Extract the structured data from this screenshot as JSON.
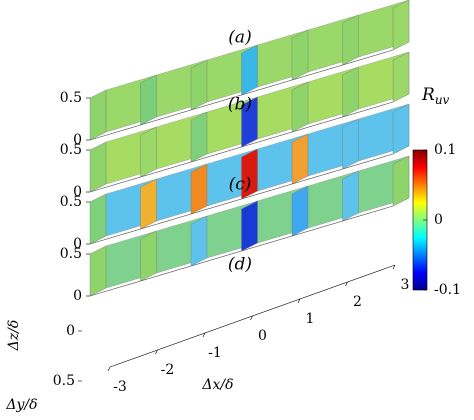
{
  "chart_data": {
    "type": "slices",
    "panels": [
      "(a)",
      "(b)",
      "(c)",
      "(d)"
    ],
    "xlabel": "Δx/δ",
    "ylabel": "Δy/δ",
    "zlabel": "Δz/δ",
    "xlim": [
      -3,
      3
    ],
    "xticks": [
      -3,
      -2,
      -1,
      0,
      1,
      2,
      3
    ],
    "zlim": [
      0,
      0.5
    ],
    "zticks": [
      0,
      0.5
    ],
    "ylim": [
      0,
      0.5
    ],
    "yticks": [
      0,
      0.5
    ],
    "colorbar": {
      "label": "R",
      "label_sub": "uv",
      "clim": [
        -0.1,
        0.1
      ],
      "ticks": [
        0.1,
        0,
        -0.1
      ]
    }
  }
}
